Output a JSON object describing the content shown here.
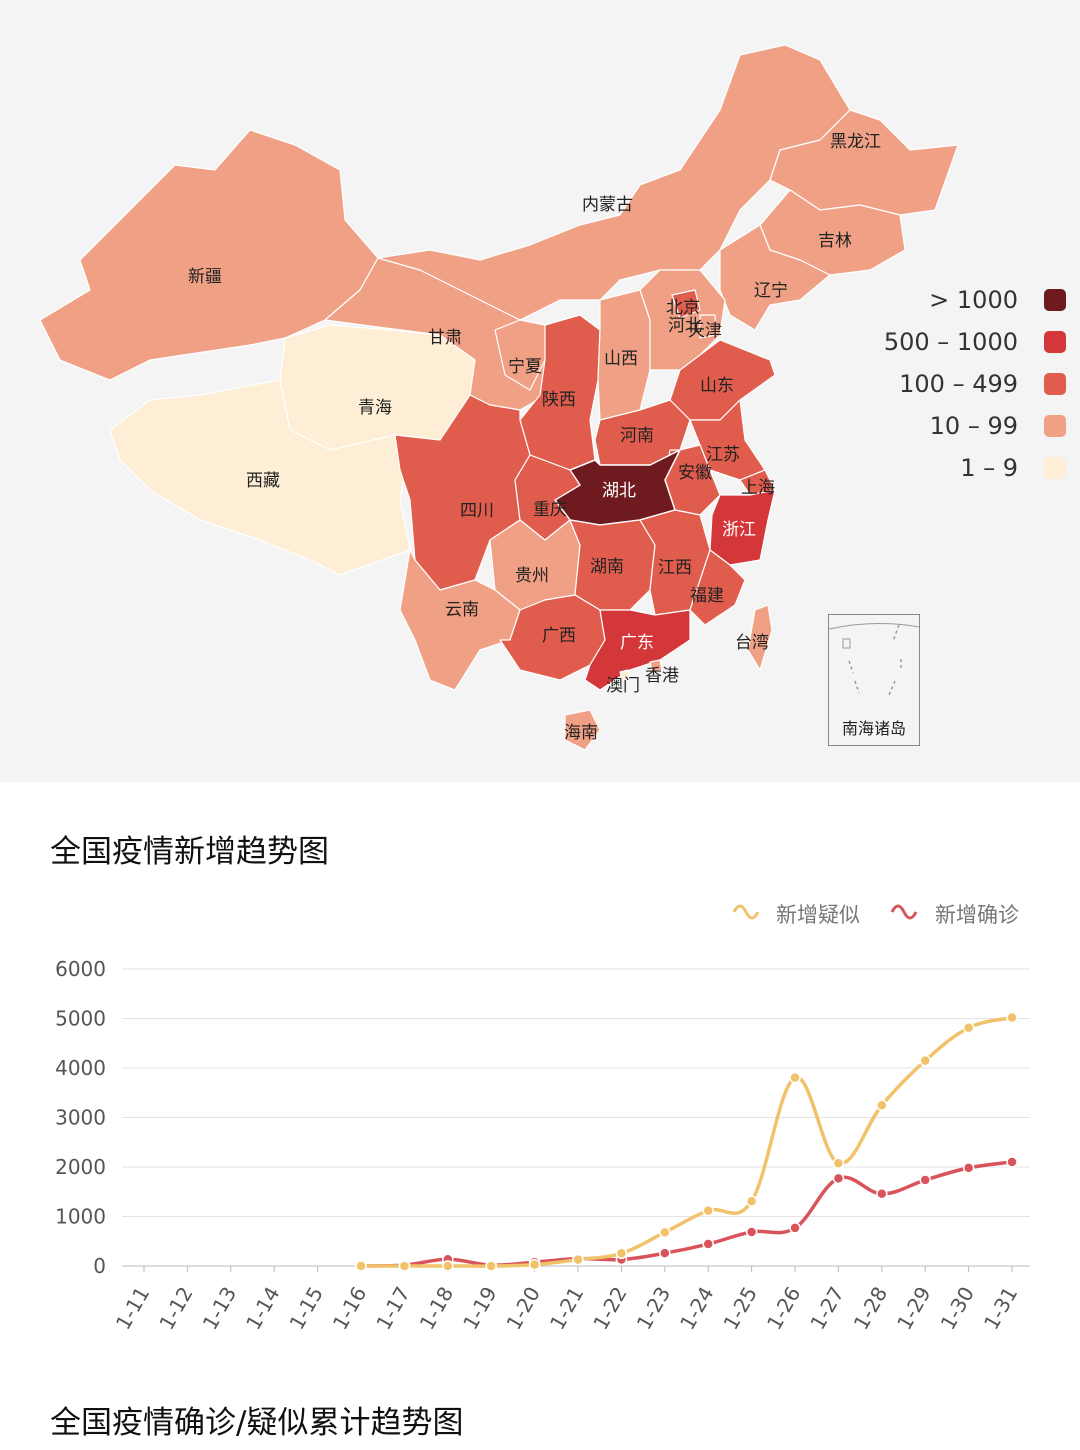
{
  "map": {
    "colors": {
      "gt1000": "#6e1a1f",
      "500_1000": "#d4373a",
      "100_499": "#e05c4d",
      "10_99": "#f0a085",
      "1_9": "#fdeed5"
    },
    "legend": [
      {
        "label": "> 1000",
        "color": "#6e1a1f"
      },
      {
        "label": "500 – 1000",
        "color": "#d4373a"
      },
      {
        "label": "100 – 499",
        "color": "#e05c4d"
      },
      {
        "label": "10 – 99",
        "color": "#f0a085"
      },
      {
        "label": "1 – 9",
        "color": "#fdeed5"
      }
    ],
    "provinces": {
      "heilongjiang": {
        "name": "黑龙江",
        "level": "10_99"
      },
      "jilin": {
        "name": "吉林",
        "level": "10_99"
      },
      "liaoning": {
        "name": "辽宁",
        "level": "10_99"
      },
      "neimenggu": {
        "name": "内蒙古",
        "level": "10_99"
      },
      "xinjiang": {
        "name": "新疆",
        "level": "10_99"
      },
      "gansu": {
        "name": "甘肃",
        "level": "10_99"
      },
      "ningxia": {
        "name": "宁夏",
        "level": "10_99"
      },
      "qinghai": {
        "name": "青海",
        "level": "1_9"
      },
      "xizang": {
        "name": "西藏",
        "level": "1_9"
      },
      "shaanxi": {
        "name": "陕西",
        "level": "100_499"
      },
      "shanxi": {
        "name": "山西",
        "level": "10_99"
      },
      "beijing": {
        "name": "北京",
        "level": "100_499"
      },
      "tianjin": {
        "name": "天津",
        "level": "10_99"
      },
      "hebei": {
        "name": "河北",
        "level": "10_99"
      },
      "shandong": {
        "name": "山东",
        "level": "100_499"
      },
      "henan": {
        "name": "河南",
        "level": "100_499"
      },
      "jiangsu": {
        "name": "江苏",
        "level": "100_499"
      },
      "anhui": {
        "name": "安徽",
        "level": "100_499"
      },
      "shanghai": {
        "name": "上海",
        "level": "100_499"
      },
      "hubei": {
        "name": "湖北",
        "level": "gt1000"
      },
      "zhejiang": {
        "name": "浙江",
        "level": "500_1000"
      },
      "sichuan": {
        "name": "四川",
        "level": "100_499"
      },
      "chongqing": {
        "name": "重庆",
        "level": "100_499"
      },
      "guizhou": {
        "name": "贵州",
        "level": "10_99"
      },
      "hunan": {
        "name": "湖南",
        "level": "100_499"
      },
      "jiangxi": {
        "name": "江西",
        "level": "100_499"
      },
      "fujian": {
        "name": "福建",
        "level": "100_499"
      },
      "yunnan": {
        "name": "云南",
        "level": "10_99"
      },
      "guangxi": {
        "name": "广西",
        "level": "100_499"
      },
      "guangdong": {
        "name": "广东",
        "level": "500_1000"
      },
      "taiwan": {
        "name": "台湾",
        "level": "10_99"
      },
      "xianggang": {
        "name": "香港",
        "level": "10_99"
      },
      "aomen": {
        "name": "澳门",
        "level": "1_9"
      },
      "hainan": {
        "name": "海南",
        "level": "10_99"
      }
    },
    "inset_label": "南海诸岛"
  },
  "trend": {
    "title": "全国疫情新增趋势图",
    "legend": {
      "suspected": "新增疑似",
      "confirmed": "新增确诊"
    }
  },
  "cumulative": {
    "title": "全国疫情确诊/疑似累计趋势图"
  },
  "chart_data": {
    "type": "line",
    "title": "全国疫情新增趋势图",
    "categories": [
      "1-11",
      "1-12",
      "1-13",
      "1-14",
      "1-15",
      "1-16",
      "1-17",
      "1-18",
      "1-19",
      "1-20",
      "1-21",
      "1-22",
      "1-23",
      "1-24",
      "1-25",
      "1-26",
      "1-27",
      "1-28",
      "1-29",
      "1-30",
      "1-31"
    ],
    "ylim": [
      0,
      6000
    ],
    "yticks": [
      0,
      1000,
      2000,
      3000,
      4000,
      5000,
      6000
    ],
    "grid": true,
    "legend_position": "top-right",
    "series": [
      {
        "name": "新增疑似",
        "color": "#f2c26b",
        "values": [
          null,
          null,
          null,
          null,
          null,
          0,
          0,
          0,
          0,
          27,
          130,
          257,
          680,
          1118,
          1309,
          3806,
          2077,
          3248,
          4148,
          4812,
          5019
        ]
      },
      {
        "name": "新增确诊",
        "color": "#d9545a",
        "values": [
          null,
          null,
          null,
          null,
          null,
          4,
          17,
          136,
          19,
          77,
          149,
          131,
          259,
          444,
          688,
          769,
          1771,
          1459,
          1737,
          1982,
          2102
        ]
      }
    ]
  }
}
